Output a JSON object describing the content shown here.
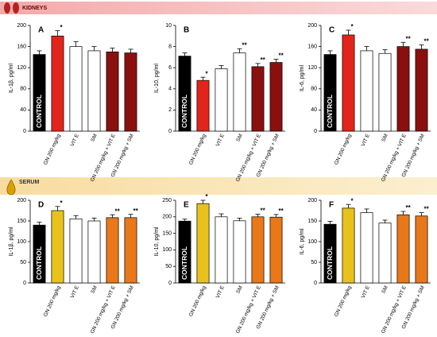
{
  "sections": [
    "KIDNEYS",
    "SERUM"
  ],
  "chart_data": [
    {
      "type": "bar",
      "panel": "A",
      "ylabel": "IL-1β, pg/ml",
      "categories": [
        "CONTROL",
        "GN 200 mg/kg",
        "VIT E",
        "SM",
        "GN 200 mg/kg + VIT E",
        "GN 200 mg/kg + SM"
      ],
      "values": [
        145,
        180,
        160,
        152,
        150,
        148
      ],
      "errors": [
        7,
        10,
        9,
        8,
        7,
        7
      ],
      "annotations": [
        null,
        "*",
        null,
        null,
        null,
        null
      ],
      "colors": [
        "#000000",
        "#e3241b",
        "#ffffff",
        "#ffffff",
        "#8a1010",
        "#8a1010"
      ],
      "ylim": [
        0,
        200
      ],
      "yticks": [
        0,
        40,
        80,
        120,
        160,
        200
      ]
    },
    {
      "type": "bar",
      "panel": "B",
      "ylabel": "IL-10, pg/ml",
      "categories": [
        "CONTROL",
        "GN 200 mg/kg",
        "VIT E",
        "SM",
        "GN 200 mg/kg + VIT E",
        "GN 200 mg/kg + SM"
      ],
      "values": [
        7.1,
        4.8,
        5.9,
        7.4,
        6.1,
        6.5
      ],
      "errors": [
        0.3,
        0.3,
        0.3,
        0.4,
        0.3,
        0.3
      ],
      "annotations": [
        null,
        "*",
        null,
        "**",
        "**",
        "**"
      ],
      "colors": [
        "#000000",
        "#e3241b",
        "#ffffff",
        "#ffffff",
        "#8a1010",
        "#8a1010"
      ],
      "ylim": [
        0,
        10
      ],
      "yticks": [
        0,
        2,
        4,
        6,
        8,
        10
      ]
    },
    {
      "type": "bar",
      "panel": "C",
      "ylabel": "IL-6, pg/ml",
      "categories": [
        "CONTROL",
        "GN 200 mg/kg",
        "VIT E",
        "SM",
        "GN 200 mg/kg + VIT E",
        "GN 200 mg/kg + SM"
      ],
      "values": [
        145,
        182,
        152,
        147,
        160,
        155
      ],
      "errors": [
        7,
        9,
        8,
        7,
        8,
        8
      ],
      "annotations": [
        null,
        "*",
        null,
        null,
        "**",
        "**"
      ],
      "colors": [
        "#000000",
        "#e3241b",
        "#ffffff",
        "#ffffff",
        "#8a1010",
        "#8a1010"
      ],
      "ylim": [
        0,
        200
      ],
      "yticks": [
        0,
        40,
        80,
        120,
        160,
        200
      ]
    },
    {
      "type": "bar",
      "panel": "D",
      "ylabel": "IL-1β, pg/ml",
      "categories": [
        "CONTROL",
        "GN 200 mg/kg",
        "VIT E",
        "SM",
        "GN 200 mg/kg + VIT E",
        "GN 200 mg/kg + SM"
      ],
      "values": [
        140,
        175,
        155,
        150,
        158,
        158
      ],
      "errors": [
        7,
        10,
        8,
        7,
        7,
        8
      ],
      "annotations": [
        null,
        "*",
        null,
        null,
        "**",
        "**"
      ],
      "colors": [
        "#000000",
        "#e8c21a",
        "#ffffff",
        "#ffffff",
        "#e8781a",
        "#e8781a"
      ],
      "ylim": [
        0,
        200
      ],
      "yticks": [
        0,
        50,
        100,
        150,
        200
      ]
    },
    {
      "type": "bar",
      "panel": "E",
      "ylabel": "IL-10, pg/ml",
      "categories": [
        "CONTROL",
        "GN 200 mg/kg",
        "VIT E",
        "SM",
        "GN 200 mg/kg + VIT E",
        "GN 200 mg/kg + SM"
      ],
      "values": [
        187,
        240,
        200,
        188,
        200,
        199
      ],
      "errors": [
        6,
        10,
        9,
        8,
        8,
        8
      ],
      "annotations": [
        null,
        "*",
        null,
        null,
        "**",
        "**"
      ],
      "colors": [
        "#000000",
        "#e8c21a",
        "#ffffff",
        "#ffffff",
        "#e8781a",
        "#e8781a"
      ],
      "ylim": [
        0,
        250
      ],
      "yticks": [
        0,
        50,
        100,
        150,
        200,
        250
      ]
    },
    {
      "type": "bar",
      "panel": "F",
      "ylabel": "IL-6, pg/ml",
      "categories": [
        "CONTROL",
        "GN 200 mg/kg",
        "VIT E",
        "SM",
        "GN 200 mg/kg + VIT E",
        "GN 200 mg/kg + SM"
      ],
      "values": [
        142,
        181,
        170,
        145,
        165,
        162
      ],
      "errors": [
        7,
        9,
        9,
        7,
        8,
        8
      ],
      "annotations": [
        null,
        "*",
        null,
        null,
        "**",
        "**"
      ],
      "colors": [
        "#000000",
        "#e8c21a",
        "#ffffff",
        "#ffffff",
        "#e8781a",
        "#e8781a"
      ],
      "ylim": [
        0,
        200
      ],
      "yticks": [
        0,
        50,
        100,
        150,
        200
      ]
    }
  ]
}
